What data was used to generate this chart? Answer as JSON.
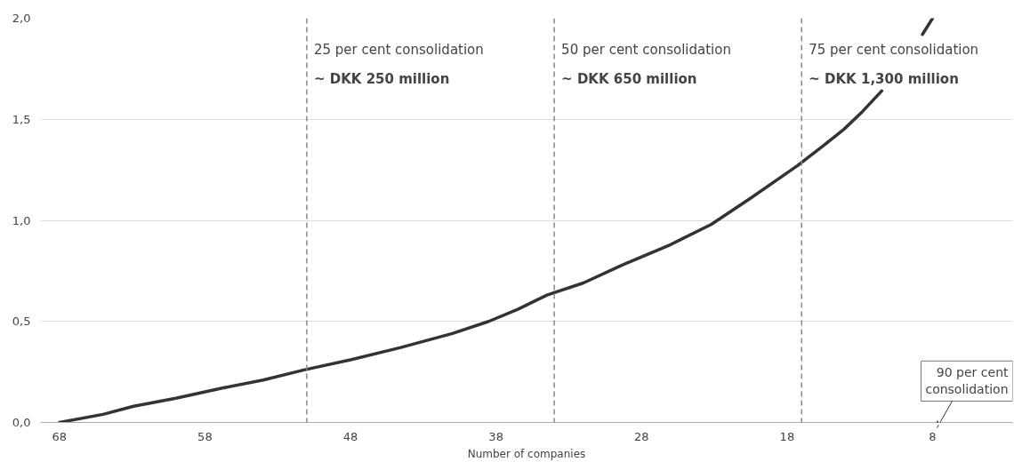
{
  "chart_data": {
    "type": "line",
    "xlabel": "Number of companies",
    "series": [
      {
        "color": "#333333",
        "x": [
          68,
          65,
          62.9,
          60,
          56.8,
          54,
          51.2,
          48,
          44.6,
          41,
          38.5,
          36.5,
          34.5,
          32,
          29.3,
          26,
          23.2,
          20.5,
          17.3,
          15.5,
          14.1,
          12.8,
          11.5,
          10,
          8.7,
          8.0
        ],
        "values": [
          0,
          0.04,
          0.08,
          0.12,
          0.17,
          0.21,
          0.26,
          0.31,
          0.37,
          0.44,
          0.5,
          0.56,
          0.63,
          0.69,
          0.78,
          0.88,
          0.98,
          1.11,
          1.27,
          1.37,
          1.45,
          1.54,
          1.64,
          null,
          1.92,
          2.0
        ]
      }
    ],
    "xlim": [
      69.3,
      2.5
    ],
    "xticks": [
      68,
      58,
      48,
      38,
      28,
      18,
      8
    ],
    "ylim": [
      0,
      2.0
    ],
    "yticks": [
      {
        "value": 0,
        "label": "0,0"
      },
      {
        "value": 0.5,
        "label": "0,5"
      },
      {
        "value": 1.0,
        "label": "1,0"
      },
      {
        "value": 1.5,
        "label": "1,5"
      },
      {
        "value": 2.0,
        "label": "2,0"
      }
    ],
    "grid": "y",
    "marker": "none",
    "line_style": "solid",
    "ref_lines": [
      {
        "axis": "x",
        "value": 51,
        "label": "25 per cent consolidation\n~ DKK 250 million",
        "color": "#888888",
        "line_style": "dashed"
      },
      {
        "axis": "x",
        "value": 34,
        "label": "50 per cent consolidation\n~ DKK 650 million",
        "color": "#888888",
        "line_style": "dashed"
      },
      {
        "axis": "x",
        "value": 17,
        "label": "75 per cent consolidation\n~ DKK 1,300 million",
        "color": "#888888",
        "line_style": "dashed"
      }
    ],
    "annotations": [
      "90 per cent\nconsolidation"
    ]
  }
}
